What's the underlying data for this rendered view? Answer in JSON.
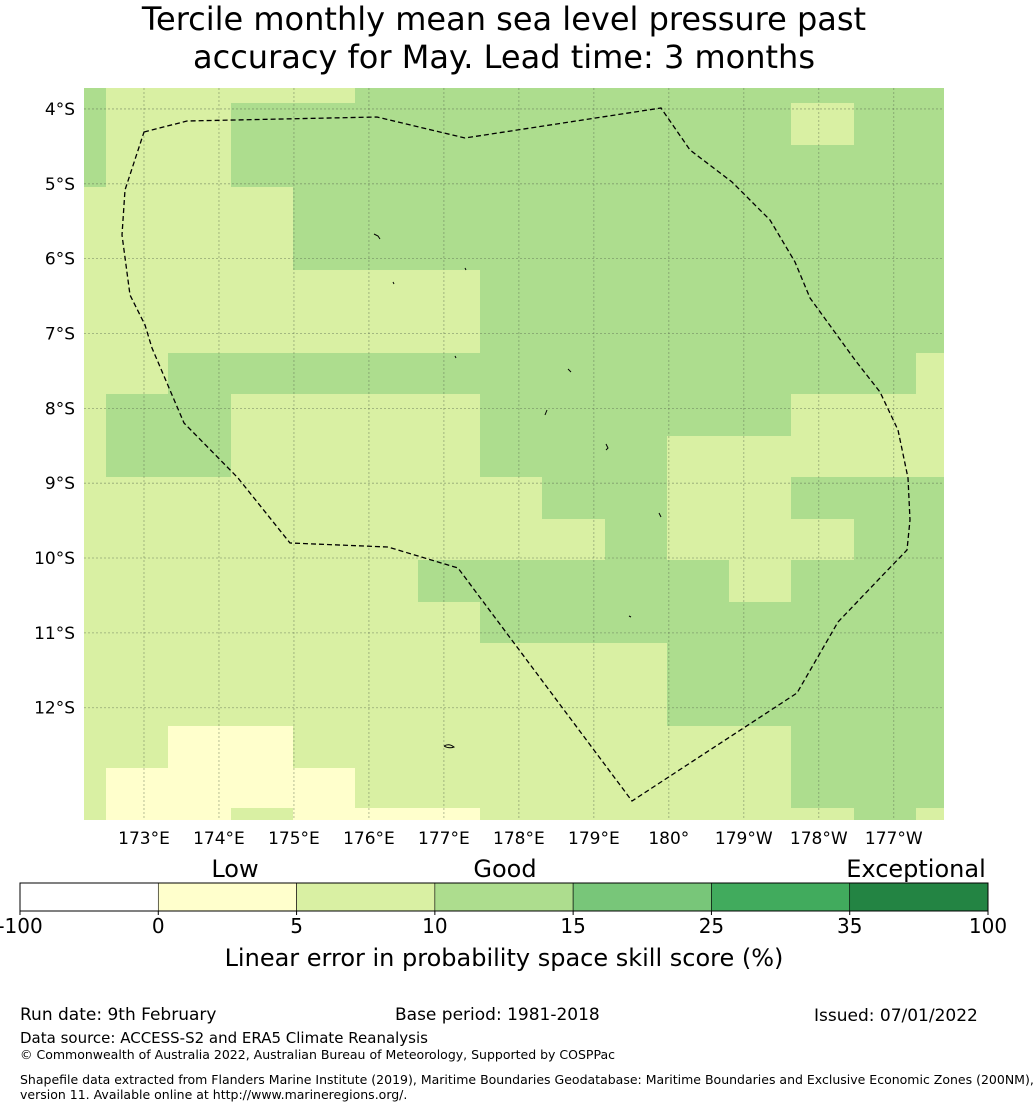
{
  "title": {
    "line1": "Tercile monthly mean sea level pressure past",
    "line2": "accuracy for May. Lead time: 3 months"
  },
  "map": {
    "x_ticks": [
      "173°E",
      "174°E",
      "175°E",
      "176°E",
      "177°E",
      "178°E",
      "179°E",
      "180°",
      "179°W",
      "178°W",
      "177°W"
    ],
    "y_ticks": [
      "4°S",
      "5°S",
      "6°S",
      "7°S",
      "8°S",
      "9°S",
      "10°S",
      "11°S",
      "12°S"
    ],
    "colors": {
      "low": "#ffffcc",
      "good_low": "#d9f0a3",
      "good": "#addd8e",
      "good_high": "#78c679",
      "very_good": "#41ab5d",
      "exceptional": "#238443",
      "none": "#ffffff"
    }
  },
  "colorbar": {
    "category_labels": [
      "Low",
      "Good",
      "Exceptional"
    ],
    "tick_labels": [
      "-100",
      "0",
      "5",
      "10",
      "15",
      "25",
      "35",
      "100"
    ],
    "colors": [
      "#ffffff",
      "#ffffcc",
      "#d9f0a3",
      "#addd8e",
      "#78c679",
      "#41ab5d",
      "#238443"
    ],
    "label": "Linear error in probability space skill score (%)"
  },
  "footer": {
    "run_date": "Run date: 9th February",
    "base_period": "Base period: 1981-2018",
    "issued": "Issued: 07/01/2022",
    "data_source": "Data source: ACCESS-S2 and ERA5 Climate Reanalysis",
    "copyright": "© Commonwealth of Australia 2022, Australian Bureau of Meteorology, Supported by COSPPac",
    "shapefile_line1": "Shapefile data extracted from Flanders Marine Institute (2019), Maritime Boundaries Geodatabase: Maritime Boundaries and Exclusive Economic Zones (200NM),",
    "shapefile_line2": "version 11. Available online at http://www.marineregions.org/."
  }
}
